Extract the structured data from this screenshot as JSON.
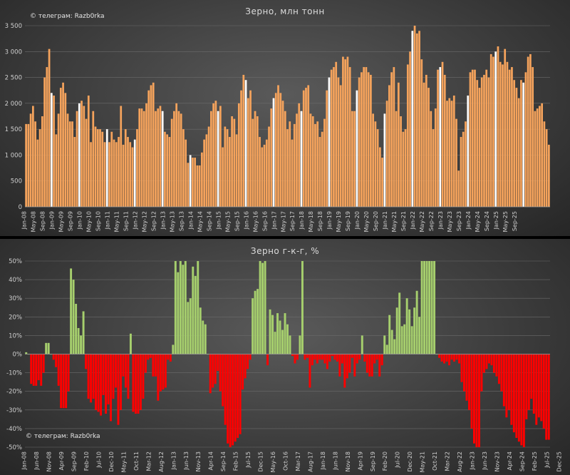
{
  "chart_data": [
    {
      "type": "bar",
      "title": "Зерно, млн тонн",
      "credit": "© телеграм: Razb0rka",
      "ylim": [
        0,
        3500
      ],
      "yticks": [
        0,
        500,
        1000,
        1500,
        2000,
        2500,
        3000,
        3500
      ],
      "ytick_labels": [
        "0",
        "500",
        "1 000",
        "1 500",
        "2 000",
        "2 500",
        "3 000",
        "3 500"
      ],
      "xtick_labels": [
        "Jan-08",
        "May-08",
        "Sep-08",
        "Jan-09",
        "May-09",
        "Sep-09",
        "Jan-10",
        "May-10",
        "Sep-10",
        "Jan-11",
        "May-11",
        "Sep-11",
        "Jan-12",
        "May-12",
        "Sep-12",
        "Jan-13",
        "May-13",
        "Sep-13",
        "Jan-14",
        "May-14",
        "Sep-14",
        "Jan-15",
        "May-15",
        "Sep-15",
        "Jan-16",
        "May-16",
        "Sep-16",
        "Jan-17",
        "May-17",
        "Sep-17",
        "Jan-18",
        "May-18",
        "Sep-18",
        "Jan-19",
        "May-19",
        "Sep-19",
        "Jan-20",
        "May-20",
        "Sep-20",
        "Jan-21",
        "May-21",
        "Sep-21",
        "Jan-22",
        "May-22",
        "Sep-22",
        "Jan-23",
        "May-23",
        "Sep-23",
        "Jan-24",
        "May-24",
        "Sep-24",
        "Jan-25",
        "May-25",
        "Sep-25"
      ],
      "colors": {
        "bar": "#f5a35c",
        "highlight": "#ffffff"
      },
      "highlight_note": "December bars drawn in white",
      "values": [
        1600,
        1600,
        1800,
        1950,
        1650,
        1300,
        1500,
        1750,
        2500,
        2700,
        3050,
        2200,
        2150,
        1400,
        1800,
        2300,
        2400,
        2200,
        1800,
        1650,
        1650,
        1350,
        1850,
        2000,
        2050,
        1950,
        1700,
        2150,
        1250,
        1850,
        1550,
        1500,
        1500,
        1450,
        1250,
        1500,
        1250,
        1450,
        1300,
        1250,
        1350,
        1950,
        1200,
        1500,
        1350,
        1250,
        1150,
        1300,
        1500,
        1900,
        1900,
        1850,
        2000,
        2250,
        2350,
        2400,
        1850,
        1900,
        1950,
        1850,
        1450,
        1400,
        1350,
        1700,
        1850,
        2000,
        1850,
        1800,
        1500,
        1300,
        850,
        1000,
        950,
        950,
        800,
        800,
        1050,
        1300,
        1400,
        1550,
        1850,
        2000,
        2050,
        1850,
        1950,
        1150,
        1550,
        1500,
        1350,
        1750,
        1700,
        1400,
        2000,
        2250,
        2550,
        2450,
        2100,
        2250,
        1700,
        1850,
        1750,
        1350,
        1150,
        1200,
        1300,
        1550,
        1900,
        2100,
        2200,
        2350,
        2200,
        2050,
        1850,
        1500,
        1650,
        1300,
        1600,
        1800,
        2000,
        1850,
        2250,
        2300,
        2350,
        1800,
        1750,
        1600,
        1650,
        1350,
        1450,
        1700,
        2250,
        2500,
        2650,
        2700,
        2800,
        2500,
        2350,
        2900,
        2850,
        2900,
        2700,
        1850,
        1850,
        2250,
        2500,
        2600,
        2700,
        2700,
        2600,
        2550,
        1800,
        1650,
        1500,
        1150,
        950,
        1800,
        2050,
        2350,
        2600,
        2700,
        1850,
        2400,
        1750,
        1450,
        1500,
        2750,
        3000,
        3400,
        3500,
        3350,
        3400,
        2850,
        2400,
        2550,
        2300,
        1850,
        1500,
        1900,
        2650,
        2700,
        2800,
        2550,
        2050,
        2100,
        2050,
        2150,
        1700,
        700,
        1350,
        1450,
        1650,
        2150,
        2600,
        2650,
        2650,
        2450,
        2300,
        2500,
        2550,
        2650,
        2500,
        2950,
        2900,
        3000,
        3100,
        2800,
        2750,
        3050,
        2800,
        2650,
        2700,
        2450,
        2300,
        2100,
        2450,
        2400,
        2600,
        2900,
        2950,
        2700,
        1850,
        1900,
        1950,
        2000,
        1650,
        1500,
        1200
      ]
    },
    {
      "type": "bar",
      "title": "Зерно г-к-г, %",
      "credit": "© телеграм: Razb0rka",
      "ylim": [
        -50,
        50
      ],
      "yticks": [
        -50,
        -40,
        -30,
        -20,
        -10,
        0,
        10,
        20,
        30,
        40,
        50
      ],
      "ytick_labels": [
        "-50%",
        "-40%",
        "-30%",
        "-20%",
        "-10%",
        "0%",
        "10%",
        "20%",
        "30%",
        "40%",
        "50%"
      ],
      "xtick_labels": [
        "Jan-08",
        "Jun-08",
        "Nov-08",
        "Apr-09",
        "Sep-09",
        "Feb-10",
        "Jul-10",
        "Dec-10",
        "May-11",
        "Oct-11",
        "Mar-12",
        "Aug-12",
        "Jan-13",
        "Jun-13",
        "Nov-13",
        "Apr-14",
        "Sep-14",
        "Feb-15",
        "Jul-15",
        "Dec-15",
        "May-16",
        "Oct-16",
        "Mar-17",
        "Aug-17",
        "Jan-18",
        "Jun-18",
        "Nov-18",
        "Apr-19",
        "Sep-19",
        "Feb-20",
        "Jul-20",
        "Dec-20",
        "May-21",
        "Oct-21",
        "Mar-22",
        "Aug-22",
        "Jan-23",
        "Jun-23",
        "Nov-23",
        "Apr-24",
        "Sep-24",
        "Feb-25",
        "Jul-25",
        "Dec-25"
      ],
      "colors": {
        "positive": "#a6cf6d",
        "negative": "#ff0000"
      },
      "values": [
        1,
        0,
        -16,
        -17,
        -17,
        -14,
        -17,
        -10,
        6,
        6,
        0,
        -3,
        -7,
        -17,
        -29,
        -29,
        -29,
        -20,
        46,
        40,
        27,
        14,
        10,
        23,
        -8,
        -24,
        -26,
        -24,
        -30,
        -31,
        -33,
        -22,
        -32,
        -27,
        -36,
        -24,
        -18,
        -38,
        -30,
        -12,
        -18,
        -24,
        11,
        -31,
        -32,
        -32,
        -30,
        -24,
        -10,
        -3,
        -2,
        -12,
        -12,
        -25,
        -20,
        -19,
        -18,
        -3,
        -4,
        5,
        50,
        44,
        50,
        48,
        50,
        28,
        30,
        47,
        42,
        50,
        25,
        18,
        16,
        0,
        -21,
        -18,
        -16,
        -9,
        -20,
        -28,
        -38,
        -48,
        -52,
        -49,
        -47,
        -45,
        -43,
        -19,
        -13,
        -8,
        -3,
        30,
        34,
        35,
        50,
        49,
        50,
        -6,
        24,
        21,
        12,
        22,
        18,
        13,
        22,
        16,
        10,
        -1,
        -5,
        -3,
        10,
        50,
        -3,
        -2,
        -18,
        -6,
        -3,
        -5,
        -3,
        -3,
        -5,
        -8,
        -4,
        -1,
        -3,
        -4,
        -12,
        -5,
        -18,
        -13,
        -10,
        -2,
        -12,
        -5,
        -3,
        10,
        -4,
        -10,
        -12,
        -12,
        -5,
        -3,
        -12,
        -6,
        10,
        5,
        21,
        13,
        8,
        25,
        33,
        15,
        16,
        30,
        24,
        15,
        25,
        34,
        20,
        50,
        50,
        50,
        50,
        50,
        50,
        0,
        -2,
        -4,
        -5,
        -4,
        -6,
        -3,
        -4,
        -3,
        -5,
        -15,
        -20,
        -25,
        -30,
        -40,
        -48,
        -50,
        -52,
        -20,
        -10,
        -8,
        -5,
        -6,
        -10,
        -12,
        -16,
        -20,
        -28,
        -34,
        -30,
        -38,
        -42,
        -45,
        -47,
        -49,
        -50,
        -35,
        -30,
        -24,
        -32,
        -38,
        -34,
        -36,
        -40,
        -46,
        -46
      ]
    }
  ]
}
